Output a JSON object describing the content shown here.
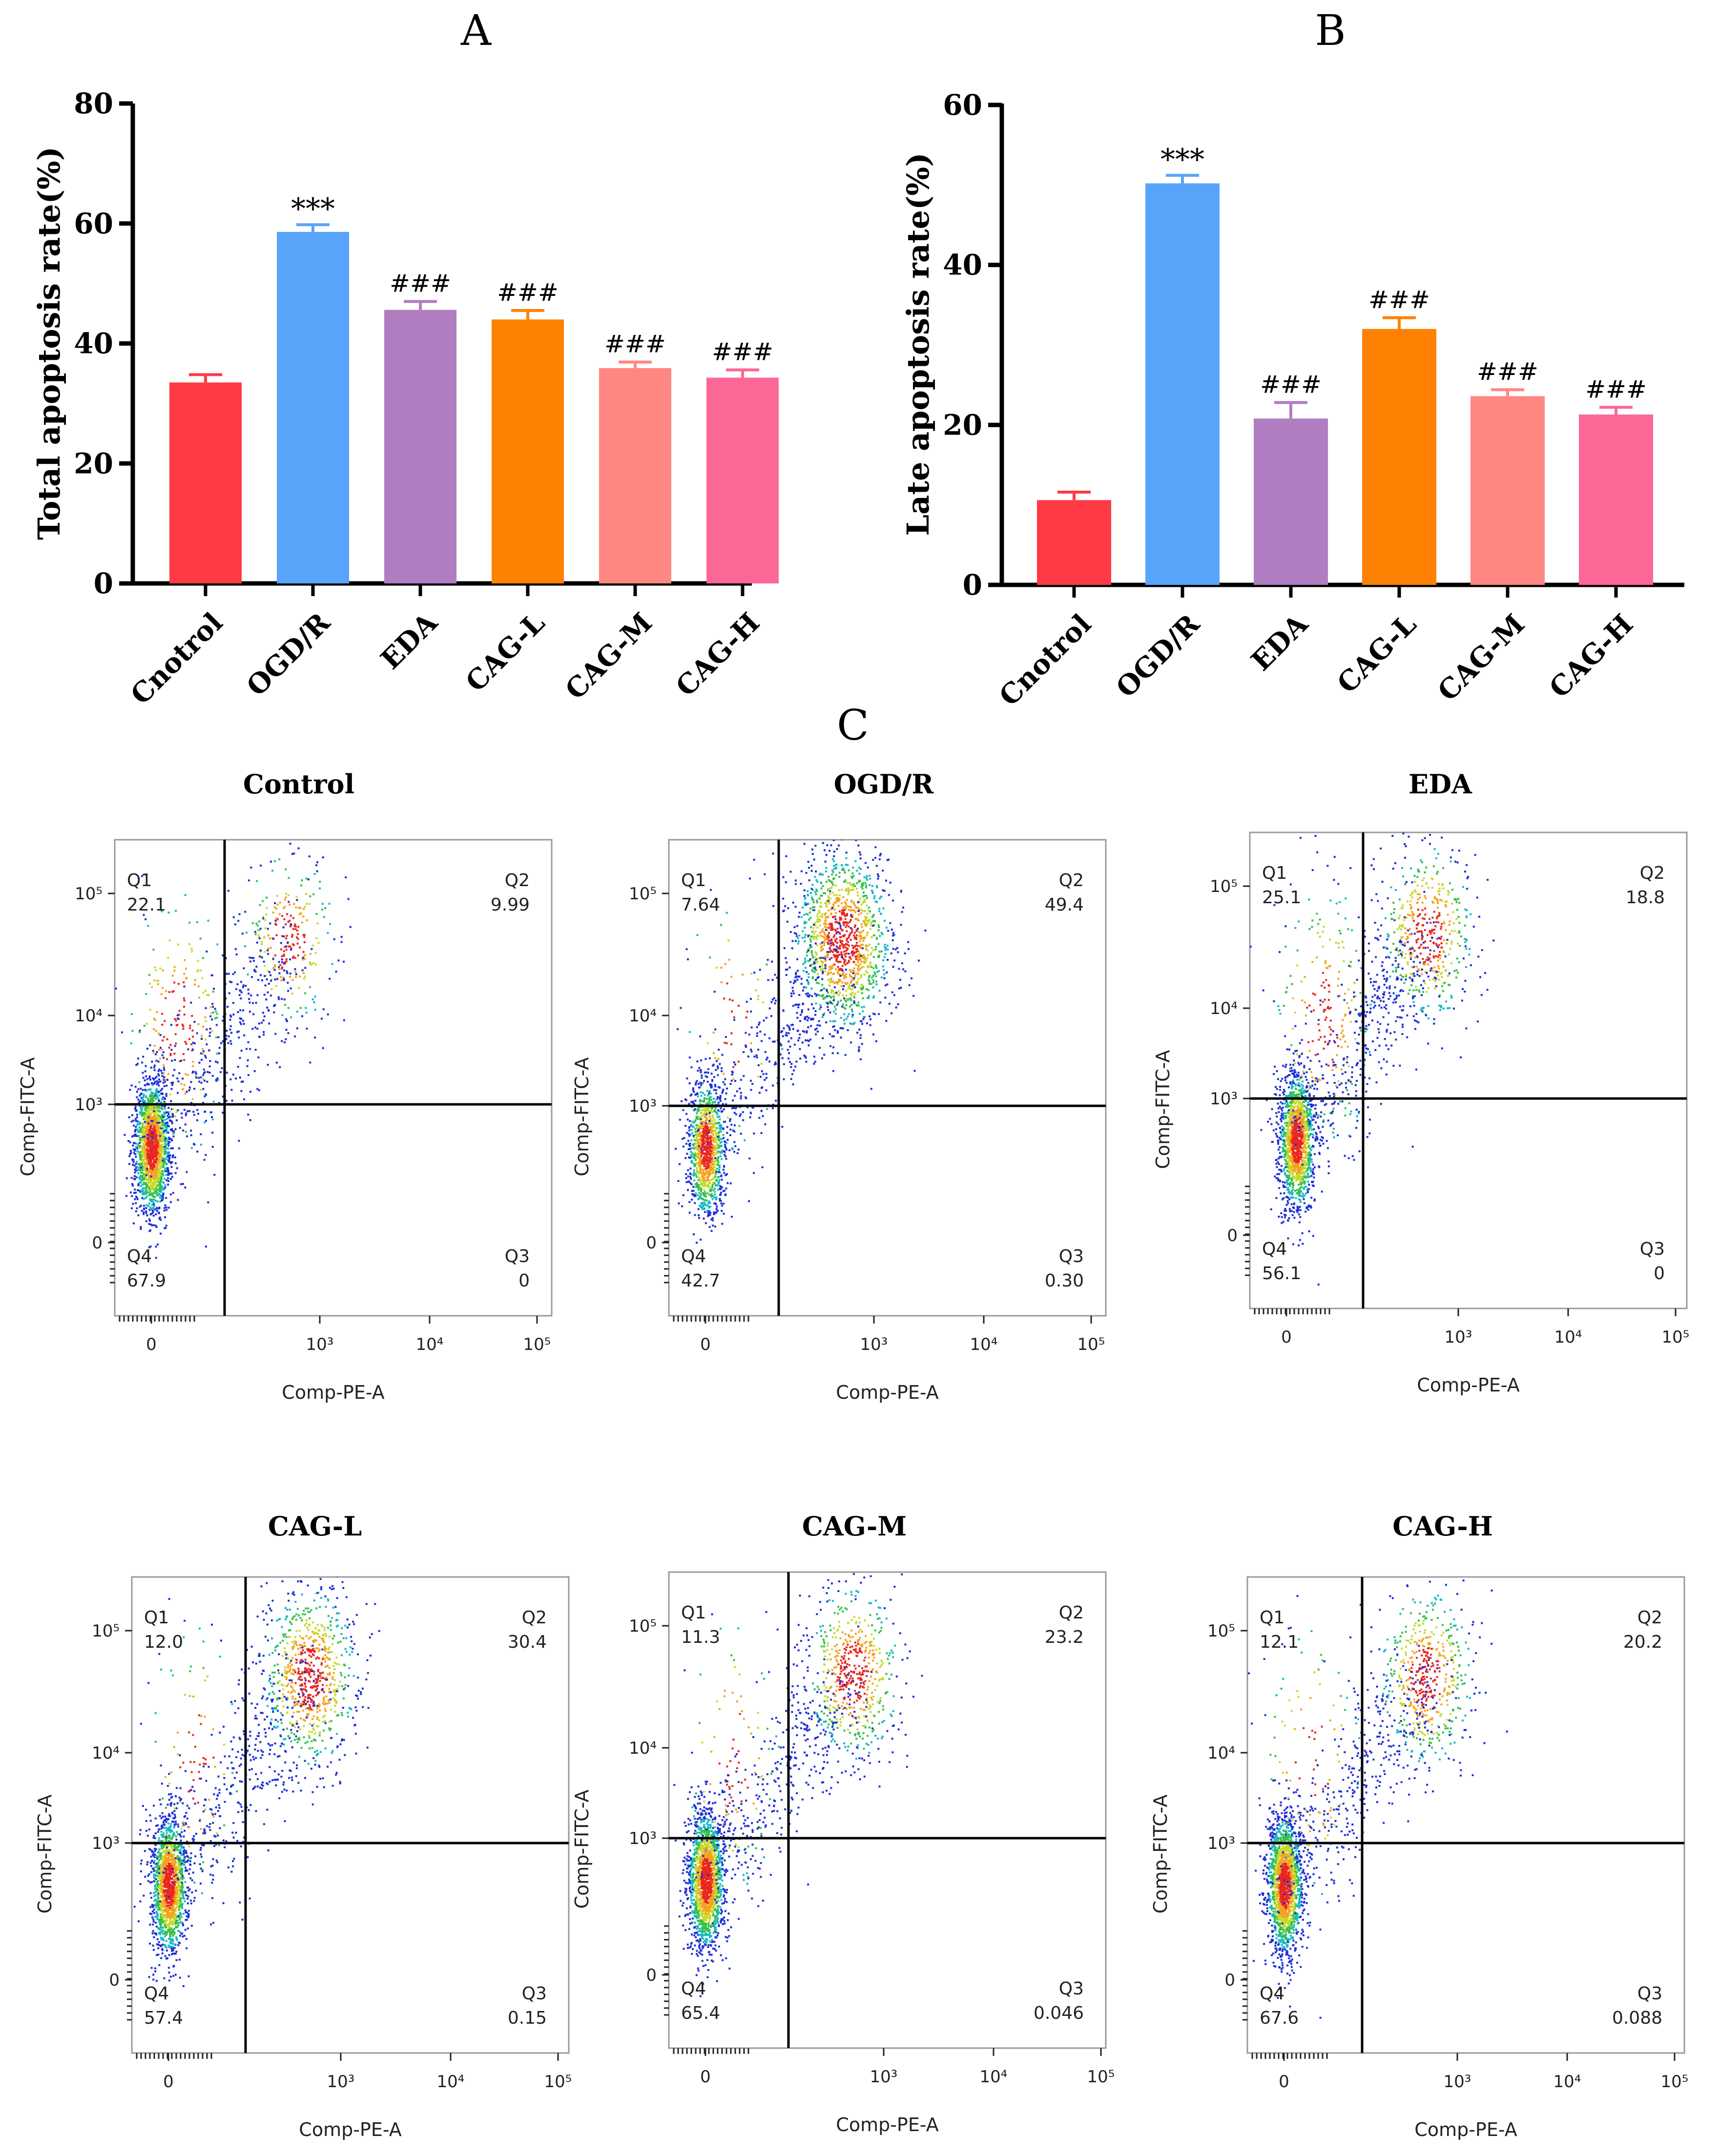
{
  "chart_data": [
    {
      "id": "A",
      "type": "bar",
      "panel_label": "A",
      "ylabel": "Total apoptosis rate(%)",
      "ylim": [
        0,
        80
      ],
      "yticks": [
        0,
        20,
        40,
        60,
        80
      ],
      "categories": [
        "Cnotrol",
        "OGD/R",
        "EDA",
        "CAG-L",
        "CAG-M",
        "CAG-H"
      ],
      "values": [
        33.5,
        58.6,
        45.6,
        44.0,
        35.9,
        34.3
      ],
      "errors": [
        1.3,
        1.2,
        1.4,
        1.5,
        1.0,
        1.3
      ],
      "annotations": [
        "",
        "***",
        "###",
        "###",
        "###",
        "###"
      ],
      "colors": [
        "#ff3a44",
        "#58a4fb",
        "#b07ec0",
        "#ff8103",
        "#ff8782",
        "#fd6796"
      ]
    },
    {
      "id": "B",
      "type": "bar",
      "panel_label": "B",
      "ylabel": "Late apoptosis rate(%)",
      "ylim": [
        0,
        60
      ],
      "yticks": [
        0,
        20,
        40,
        60
      ],
      "categories": [
        "Cnotrol",
        "OGD/R",
        "EDA",
        "CAG-L",
        "CAG-M",
        "CAG-H"
      ],
      "values": [
        10.6,
        50.2,
        20.8,
        32.0,
        23.6,
        21.3
      ],
      "errors": [
        1.0,
        1.0,
        2.0,
        1.4,
        0.8,
        0.9
      ],
      "annotations": [
        "",
        "***",
        "###",
        "###",
        "###",
        "###"
      ],
      "colors": [
        "#ff3a44",
        "#58a4fb",
        "#b07ec0",
        "#ff8103",
        "#ff8782",
        "#fd6796"
      ]
    },
    {
      "id": "C",
      "type": "scatter",
      "panel_label": "C",
      "xlabel": "Comp-PE-A",
      "ylabel": "Comp-FITC-A",
      "x_ticks": [
        "0",
        "10³",
        "10⁴",
        "10⁵"
      ],
      "y_ticks": [
        "0",
        "10³",
        "10⁴",
        "10⁵"
      ],
      "plots": [
        {
          "title": "Control",
          "q1": "22.1",
          "q2": "9.99",
          "q3": "0",
          "q4": "67.9"
        },
        {
          "title": "OGD/R",
          "q1": "7.64",
          "q2": "49.4",
          "q3": "0.30",
          "q4": "42.7"
        },
        {
          "title": "EDA",
          "q1": "25.1",
          "q2": "18.8",
          "q3": "0",
          "q4": "56.1"
        },
        {
          "title": "CAG-L",
          "q1": "12.0",
          "q2": "30.4",
          "q3": "0.15",
          "q4": "57.4"
        },
        {
          "title": "CAG-M",
          "q1": "11.3",
          "q2": "23.2",
          "q3": "0.046",
          "q4": "65.4"
        },
        {
          "title": "CAG-H",
          "q1": "12.1",
          "q2": "20.2",
          "q3": "0.088",
          "q4": "67.6"
        }
      ]
    }
  ]
}
